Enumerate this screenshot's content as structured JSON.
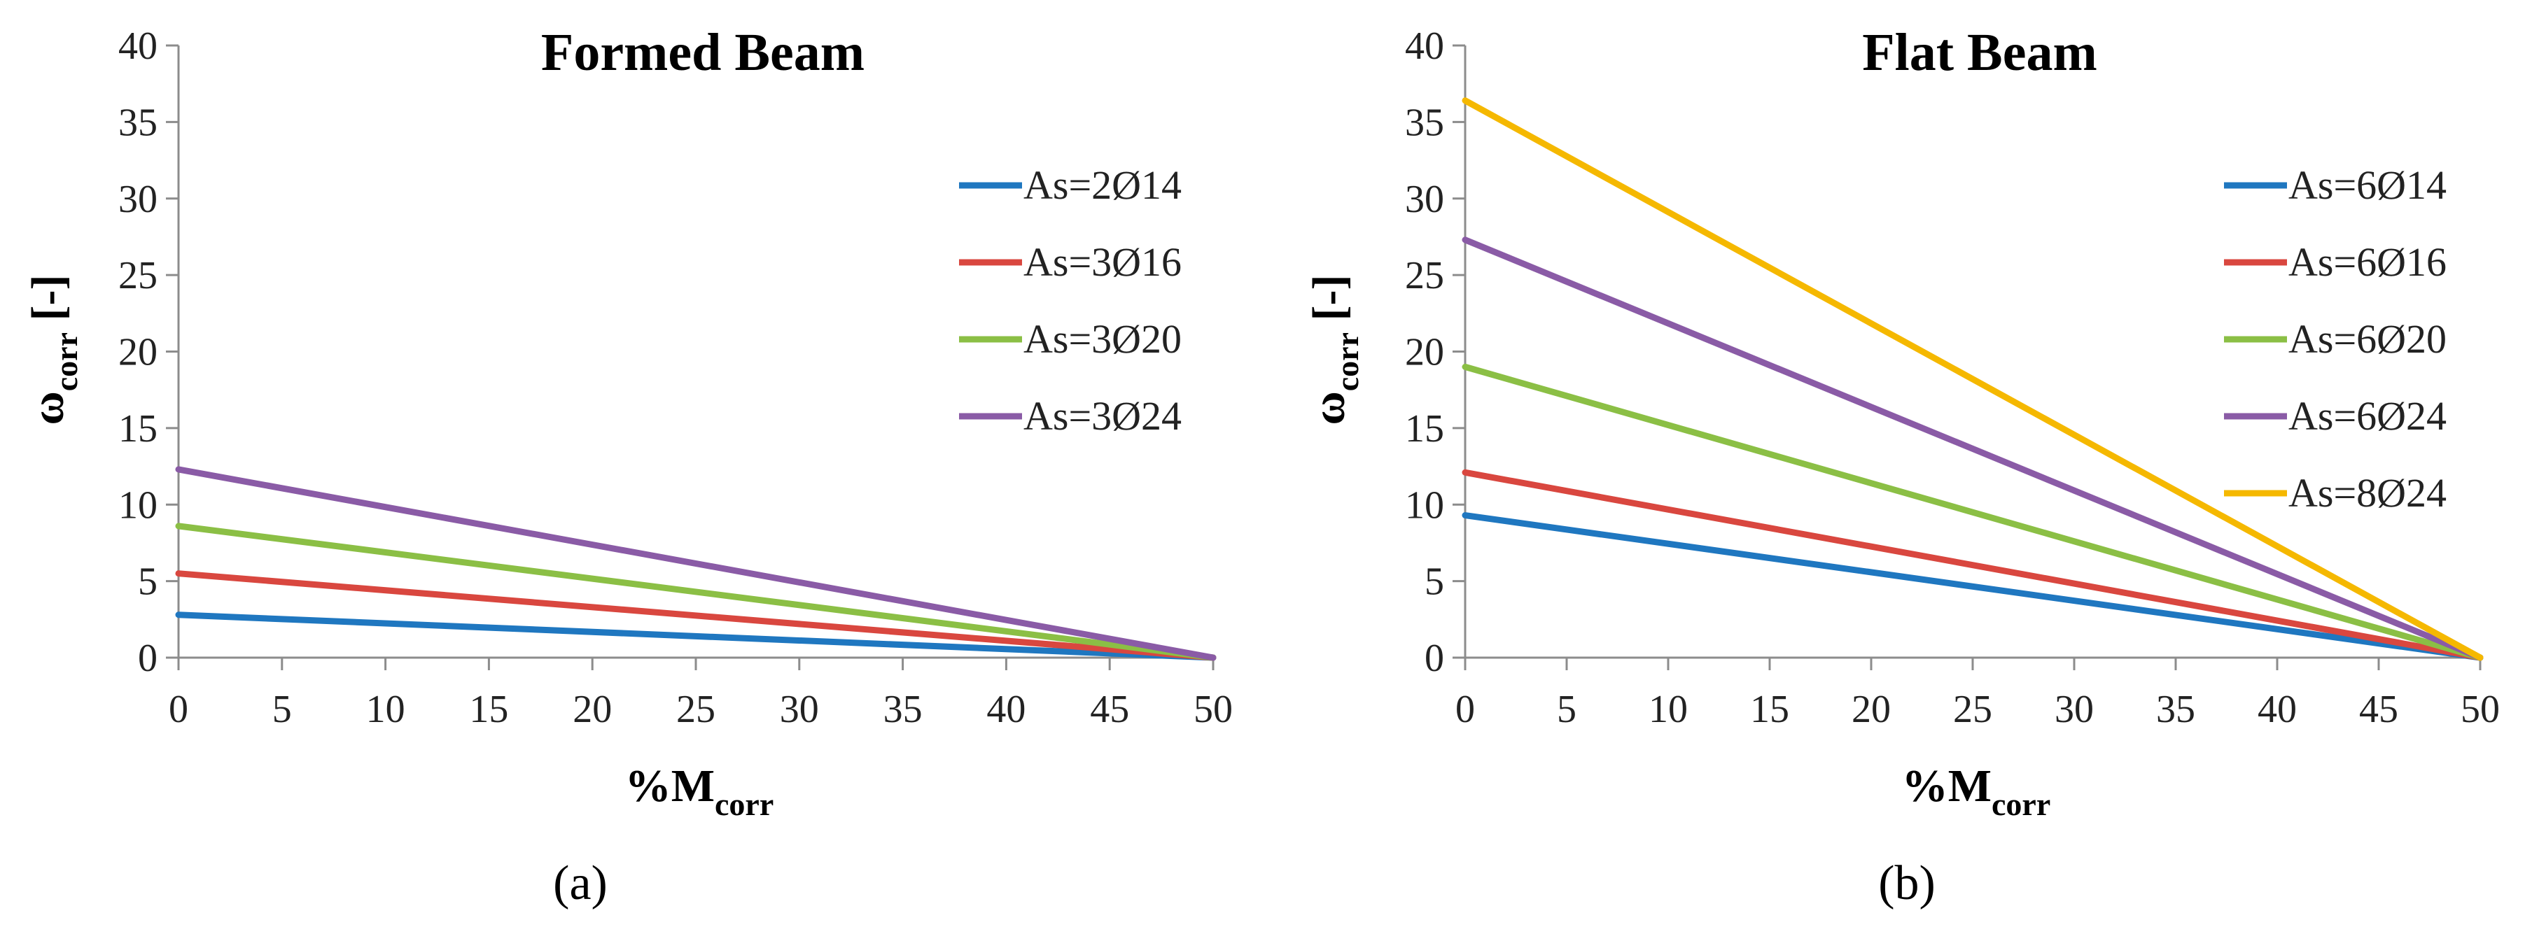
{
  "chart_data": [
    {
      "type": "line",
      "title": "Formed Beam",
      "xlabel": {
        "main": "%M",
        "sub": "corr"
      },
      "ylabel": {
        "main": "ω",
        "sub": "corr",
        "suffix": " [-]"
      },
      "xlim": [
        0,
        50
      ],
      "ylim": [
        0,
        40
      ],
      "xticks": [
        0,
        5,
        10,
        15,
        20,
        25,
        30,
        35,
        40,
        45,
        50
      ],
      "yticks": [
        0,
        5,
        10,
        15,
        20,
        25,
        30,
        35,
        40
      ],
      "grid": false,
      "legend_position": "upper-right",
      "series": [
        {
          "name": "As=2Ø14",
          "color": "#1f77c0",
          "x": [
            0,
            50
          ],
          "y": [
            2.8,
            0
          ]
        },
        {
          "name": "As=3Ø16",
          "color": "#d9473f",
          "x": [
            0,
            50
          ],
          "y": [
            5.5,
            0
          ]
        },
        {
          "name": "As=3Ø20",
          "color": "#8bbf45",
          "x": [
            0,
            50
          ],
          "y": [
            8.6,
            0
          ]
        },
        {
          "name": "As=3Ø24",
          "color": "#8a5ba6",
          "x": [
            0,
            50
          ],
          "y": [
            12.3,
            0
          ]
        }
      ],
      "caption": "(a)"
    },
    {
      "type": "line",
      "title": "Flat Beam",
      "xlabel": {
        "main": "%M",
        "sub": "corr"
      },
      "ylabel": {
        "main": "ω",
        "sub": "corr",
        "suffix": " [-]"
      },
      "xlim": [
        0,
        50
      ],
      "ylim": [
        0,
        40
      ],
      "xticks": [
        0,
        5,
        10,
        15,
        20,
        25,
        30,
        35,
        40,
        45,
        50
      ],
      "yticks": [
        0,
        5,
        10,
        15,
        20,
        25,
        30,
        35,
        40
      ],
      "grid": false,
      "legend_position": "right",
      "series": [
        {
          "name": "As=6Ø14",
          "color": "#1f77c0",
          "x": [
            0,
            50
          ],
          "y": [
            9.3,
            0
          ]
        },
        {
          "name": "As=6Ø16",
          "color": "#d9473f",
          "x": [
            0,
            50
          ],
          "y": [
            12.1,
            0
          ]
        },
        {
          "name": "As=6Ø20",
          "color": "#8bbf45",
          "x": [
            0,
            50
          ],
          "y": [
            19.0,
            0
          ]
        },
        {
          "name": "As=6Ø24",
          "color": "#8a5ba6",
          "x": [
            0,
            50
          ],
          "y": [
            27.3,
            0
          ]
        },
        {
          "name": "As=8Ø24",
          "color": "#f5b800",
          "x": [
            0,
            50
          ],
          "y": [
            36.4,
            0
          ]
        }
      ],
      "caption": "(b)"
    }
  ]
}
